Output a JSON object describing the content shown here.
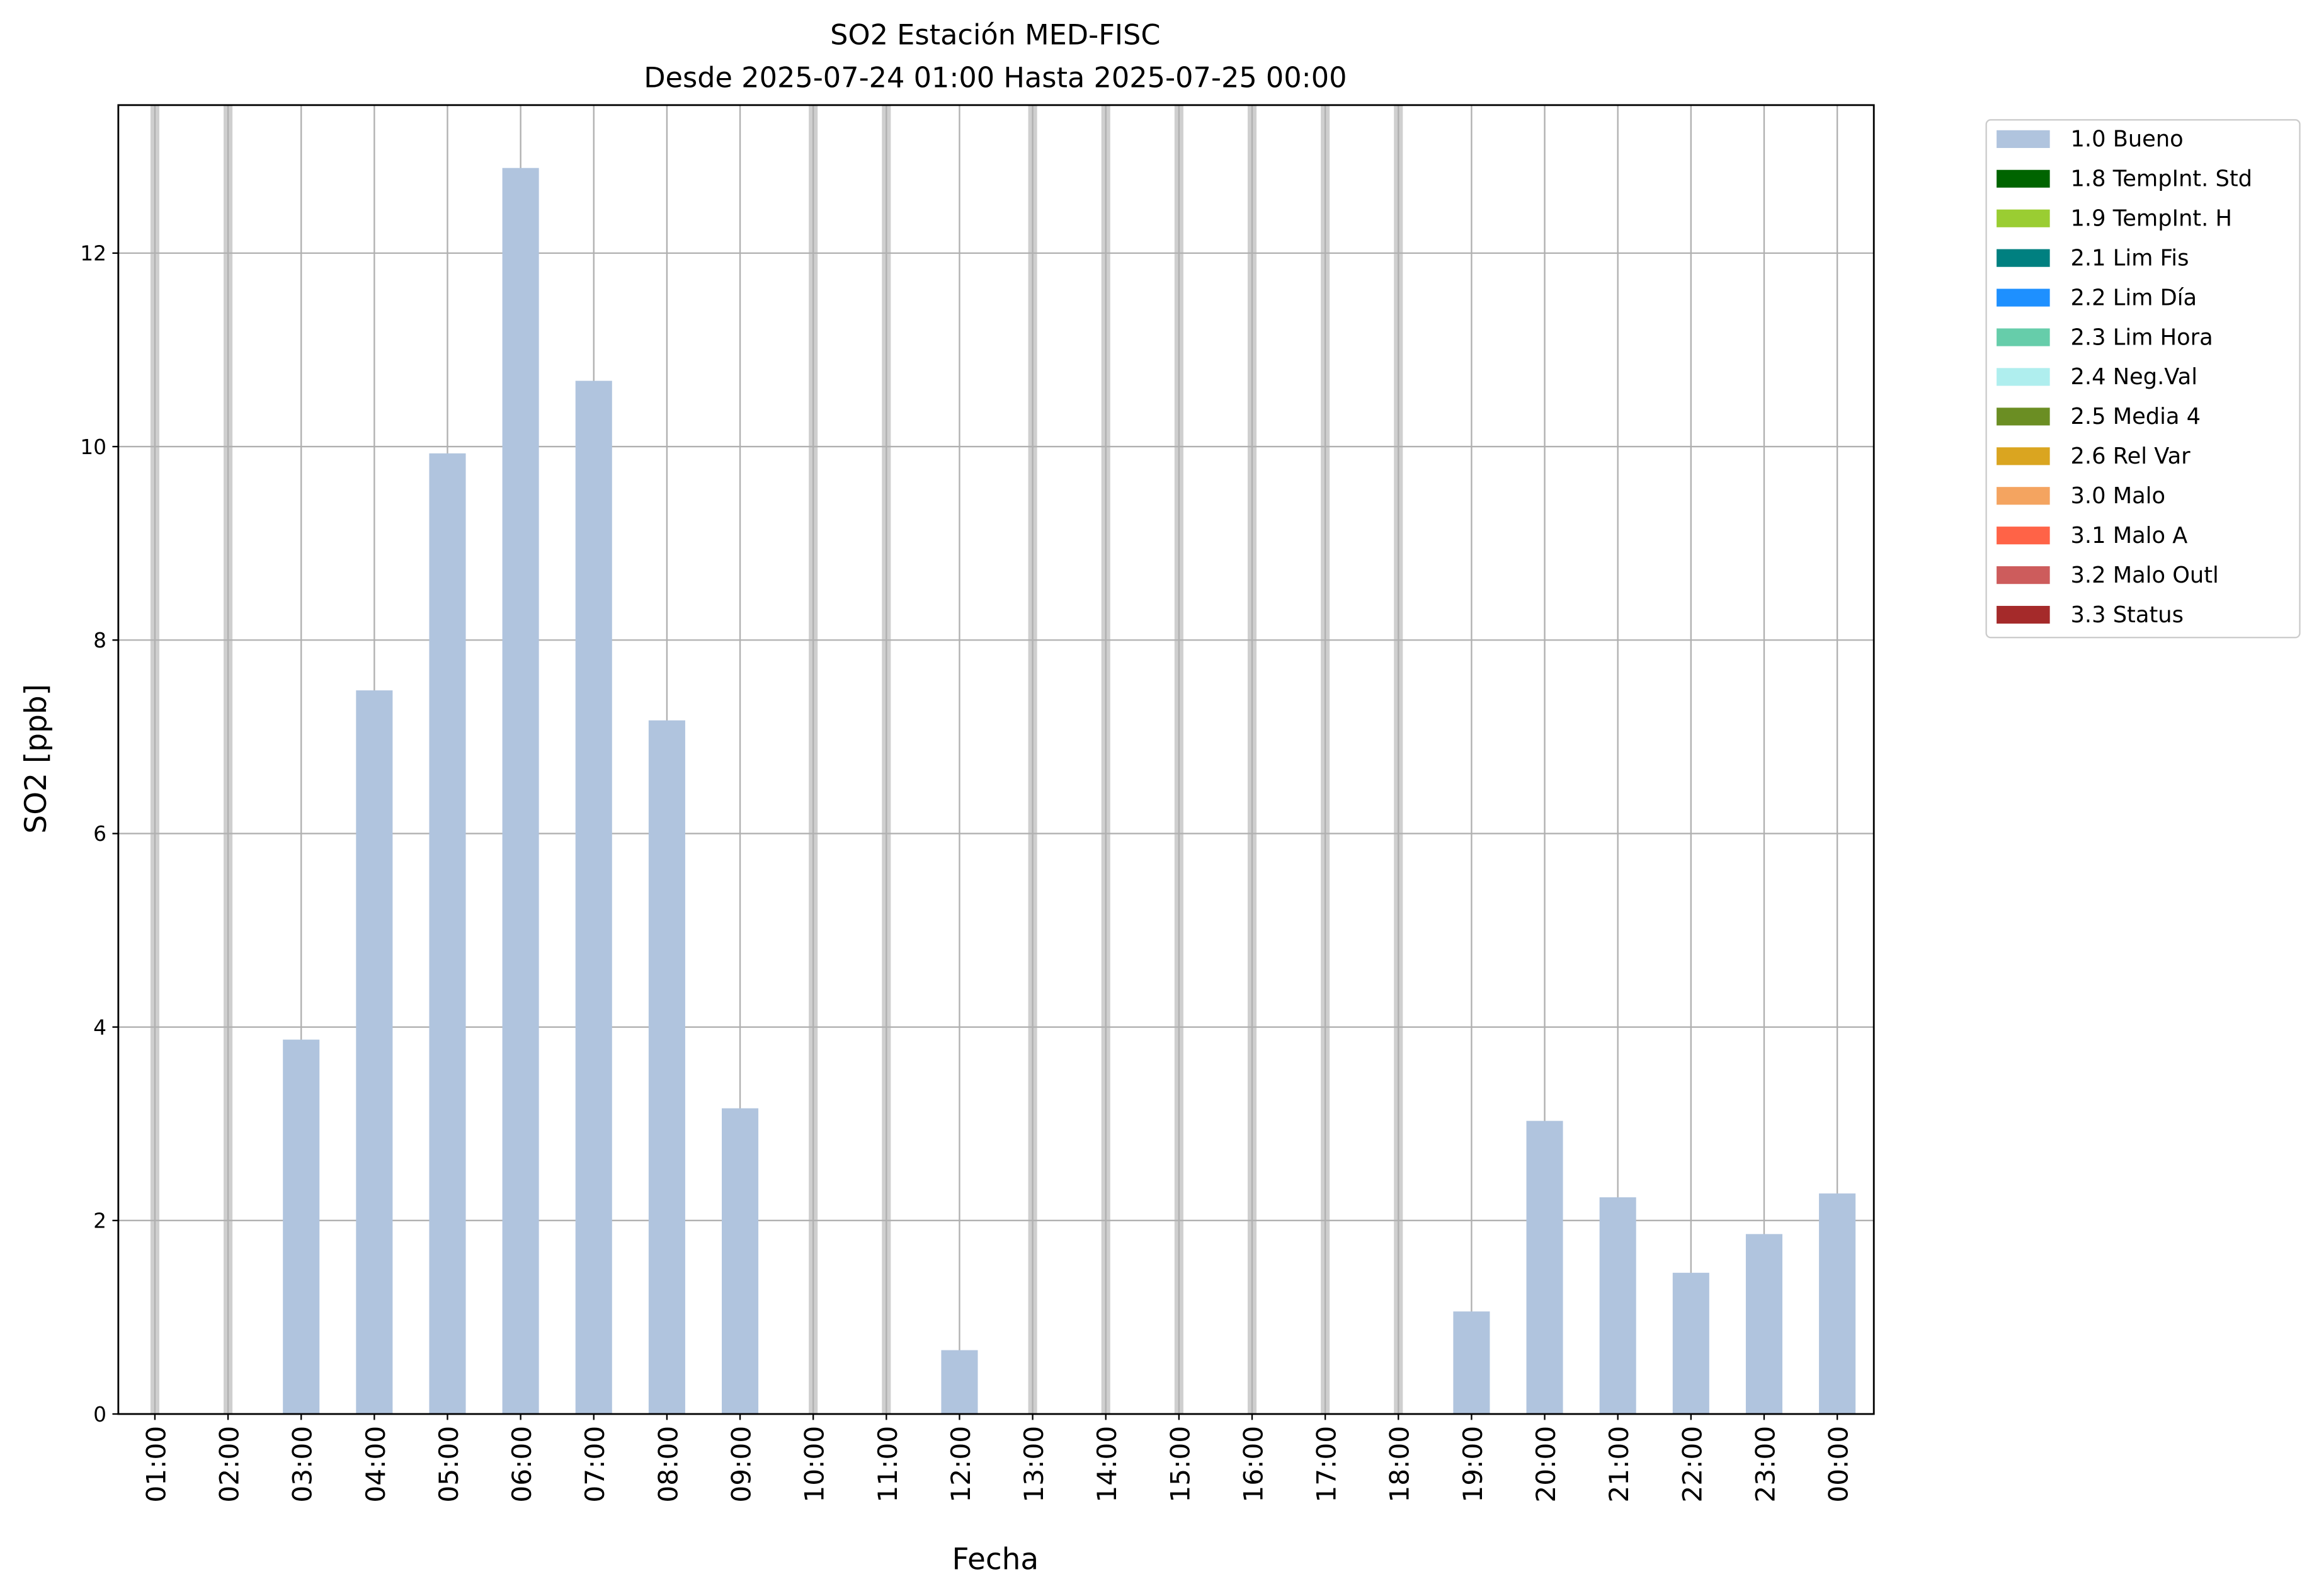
{
  "chart_data": {
    "type": "bar",
    "title": "SO2 Estación MED-FISC",
    "subtitle": "Desde 2025-07-24 01:00 Hasta 2025-07-25 00:00",
    "x_label": "Fecha",
    "y_label": "SO2 [ppb]",
    "categories": [
      "01:00",
      "02:00",
      "03:00",
      "04:00",
      "05:00",
      "06:00",
      "07:00",
      "08:00",
      "09:00",
      "10:00",
      "11:00",
      "12:00",
      "13:00",
      "14:00",
      "15:00",
      "16:00",
      "17:00",
      "18:00",
      "19:00",
      "20:00",
      "21:00",
      "22:00",
      "23:00",
      "00:00"
    ],
    "series": [
      {
        "name": "1.0 Bueno",
        "color": "#b0c4de",
        "values": [
          null,
          null,
          3.87,
          7.48,
          9.93,
          12.88,
          10.68,
          7.17,
          3.16,
          null,
          null,
          0.66,
          null,
          null,
          null,
          null,
          null,
          null,
          1.06,
          3.03,
          2.24,
          1.46,
          1.86,
          2.28
        ]
      },
      {
        "name": "1.8 TempInt. Std",
        "color": "#006400",
        "values": [
          null,
          null,
          null,
          null,
          null,
          null,
          null,
          null,
          null,
          null,
          null,
          null,
          null,
          null,
          null,
          null,
          null,
          null,
          null,
          null,
          null,
          null,
          null,
          null
        ]
      },
      {
        "name": "1.9 TempInt. H",
        "color": "#9acd32",
        "values": [
          null,
          null,
          null,
          null,
          null,
          null,
          null,
          null,
          null,
          null,
          null,
          null,
          null,
          null,
          null,
          null,
          null,
          null,
          null,
          null,
          null,
          null,
          null,
          null
        ]
      },
      {
        "name": "2.1 Lim Fis",
        "color": "#008080",
        "values": [
          null,
          null,
          null,
          null,
          null,
          null,
          null,
          null,
          null,
          null,
          null,
          null,
          null,
          null,
          null,
          null,
          null,
          null,
          null,
          null,
          null,
          null,
          null,
          null
        ]
      },
      {
        "name": "2.2 Lim Día",
        "color": "#1e90ff",
        "values": [
          null,
          null,
          null,
          null,
          null,
          null,
          null,
          null,
          null,
          null,
          null,
          null,
          null,
          null,
          null,
          null,
          null,
          null,
          null,
          null,
          null,
          null,
          null,
          null
        ]
      },
      {
        "name": "2.3 Lim Hora",
        "color": "#66cdaa",
        "values": [
          null,
          null,
          null,
          null,
          null,
          null,
          null,
          null,
          null,
          null,
          null,
          null,
          null,
          null,
          null,
          null,
          null,
          null,
          null,
          null,
          null,
          null,
          null,
          null
        ]
      },
      {
        "name": "2.4 Neg.Val",
        "color": "#afeeee",
        "values": [
          null,
          null,
          null,
          null,
          null,
          null,
          null,
          null,
          null,
          null,
          null,
          null,
          null,
          null,
          null,
          null,
          null,
          null,
          null,
          null,
          null,
          null,
          null,
          null
        ]
      },
      {
        "name": "2.5 Media 4",
        "color": "#6b8e23",
        "values": [
          null,
          null,
          null,
          null,
          null,
          null,
          null,
          null,
          null,
          null,
          null,
          null,
          null,
          null,
          null,
          null,
          null,
          null,
          null,
          null,
          null,
          null,
          null,
          null
        ]
      },
      {
        "name": "2.6 Rel Var",
        "color": "#daa520",
        "values": [
          null,
          null,
          null,
          null,
          null,
          null,
          null,
          null,
          null,
          null,
          null,
          null,
          null,
          null,
          null,
          null,
          null,
          null,
          null,
          null,
          null,
          null,
          null,
          null
        ]
      },
      {
        "name": "3.0 Malo",
        "color": "#f4a460",
        "values": [
          null,
          null,
          null,
          null,
          null,
          null,
          null,
          null,
          null,
          null,
          null,
          null,
          null,
          null,
          null,
          null,
          null,
          null,
          null,
          null,
          null,
          null,
          null,
          null
        ]
      },
      {
        "name": "3.1 Malo A",
        "color": "#ff6347",
        "values": [
          null,
          null,
          null,
          null,
          null,
          null,
          null,
          null,
          null,
          null,
          null,
          null,
          null,
          null,
          null,
          null,
          null,
          null,
          null,
          null,
          null,
          null,
          null,
          null
        ]
      },
      {
        "name": "3.2 Malo Outl",
        "color": "#cd5c5c",
        "values": [
          null,
          null,
          null,
          null,
          null,
          null,
          null,
          null,
          null,
          null,
          null,
          null,
          null,
          null,
          null,
          null,
          null,
          null,
          null,
          null,
          null,
          null,
          null,
          null
        ]
      },
      {
        "name": "3.3 Status",
        "color": "#a52a2a",
        "values": [
          null,
          null,
          null,
          null,
          null,
          null,
          null,
          null,
          null,
          null,
          null,
          null,
          null,
          null,
          null,
          null,
          null,
          null,
          null,
          null,
          null,
          null,
          null,
          null
        ]
      }
    ],
    "ylim": [
      0,
      13.53
    ],
    "yticks": [
      0,
      2,
      4,
      6,
      8,
      10,
      12
    ],
    "grid": true,
    "legend": "outside upper right"
  }
}
